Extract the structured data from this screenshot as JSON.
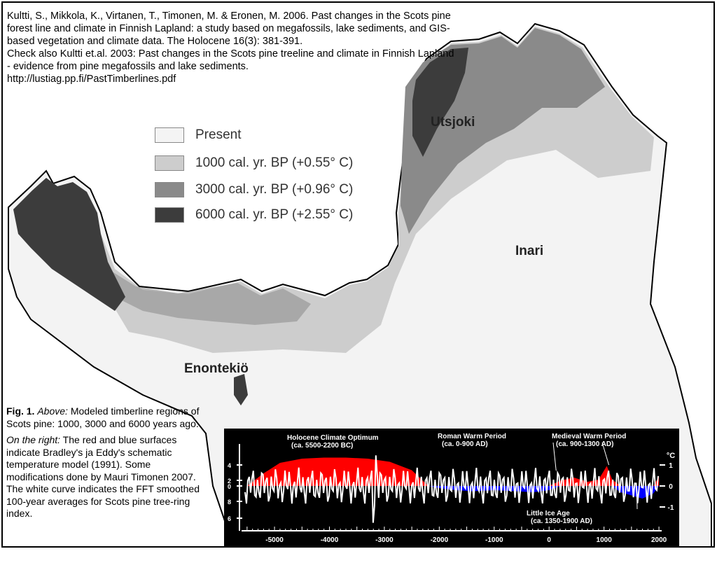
{
  "citation": {
    "text": "Kultti, S., Mikkola, K., Virtanen, T., Timonen, M. & Eronen, M. 2006.  Past changes in the Scots pine forest line and climate in Finnish Lapland: a study based on megafossils, lake sediments, and GIS-based vegetation and climate data. The Holocene 16(3): 381-391.\n   Check also Kultti et.al. 2003: Past changes in the Scots pine treeline and climate in Finnish Lapland - evidence from pine megafossils and lake sediments.\nhttp://lustiag.pp.fi/PastTimberlines.pdf"
  },
  "legend": [
    {
      "label": "Present",
      "color": "#f4f4f4"
    },
    {
      "label": "1000 cal. yr. BP (+0.55° C)",
      "color": "#cdcdcd"
    },
    {
      "label": "3000 cal. yr. BP (+0.96° C)",
      "color": "#8a8a8a"
    },
    {
      "label": "6000 cal. yr. BP (+2.55° C)",
      "color": "#3c3c3c"
    }
  ],
  "places": {
    "utsjoki": "Utsjoki",
    "inari": "Inari",
    "enontekio": "Enontekiö"
  },
  "caption": {
    "fig_label": "Fig. 1.",
    "above_label": "Above:",
    "above_text": " Modeled timberline regions of Scots pine: 1000, 3000 and 6000 years ago.",
    "right_label": "On the right:",
    "right_text": " The red and blue surfaces indicate Bradley's ja Eddy's schematic temperature model (1991). Some modifications done by Mauri Timonen 2007. The white curve indicates the FFT smoothed 100-year averages for Scots pine tree-ring index."
  },
  "chart_data": {
    "type": "area",
    "x_ticks": [
      "-5000",
      "-4000",
      "-3000",
      "-2000",
      "-1000",
      "0",
      "1000",
      "2000"
    ],
    "xlim": [
      -5600,
      2050
    ],
    "left_ticks": [
      "4",
      "2",
      "0",
      "8",
      "6"
    ],
    "right_axis_unit": "°C",
    "right_ticks": [
      "1",
      "0",
      "-1"
    ],
    "ylim_celsius": [
      -1.4,
      1.4
    ],
    "annotations": [
      {
        "title": "Holocene Climate Optimum",
        "range": "(ca. 5500-2200 BC)"
      },
      {
        "title": "Roman Warm Period",
        "range": "(ca. 0-900 AD)"
      },
      {
        "title": "Medieval Warm Period",
        "range": "(ca. 900-1300 AD)"
      },
      {
        "title": "Little Ice Age",
        "range": "(ca. 1350-1900 AD)"
      }
    ],
    "warm_series_color": "#ff0000",
    "cold_series_color": "#0000ff",
    "curve_color": "#ffffff",
    "temperature_anomaly": {
      "x": [
        -5500,
        -5200,
        -4900,
        -4500,
        -4100,
        -3700,
        -3300,
        -2900,
        -2500,
        -2200,
        -2000,
        -1700,
        -1400,
        -1000,
        -600,
        -300,
        0,
        200,
        450,
        700,
        900,
        1050,
        1150,
        1300,
        1500,
        1700,
        1900,
        2000
      ],
      "y": [
        0.0,
        0.6,
        1.1,
        1.3,
        1.35,
        1.35,
        1.3,
        1.15,
        0.75,
        0.0,
        -0.1,
        -0.2,
        -0.25,
        -0.2,
        -0.25,
        -0.3,
        -0.2,
        0.25,
        0.4,
        0.2,
        0.3,
        0.95,
        0.3,
        -0.3,
        -0.45,
        -0.6,
        -0.35,
        0.45
      ]
    }
  }
}
